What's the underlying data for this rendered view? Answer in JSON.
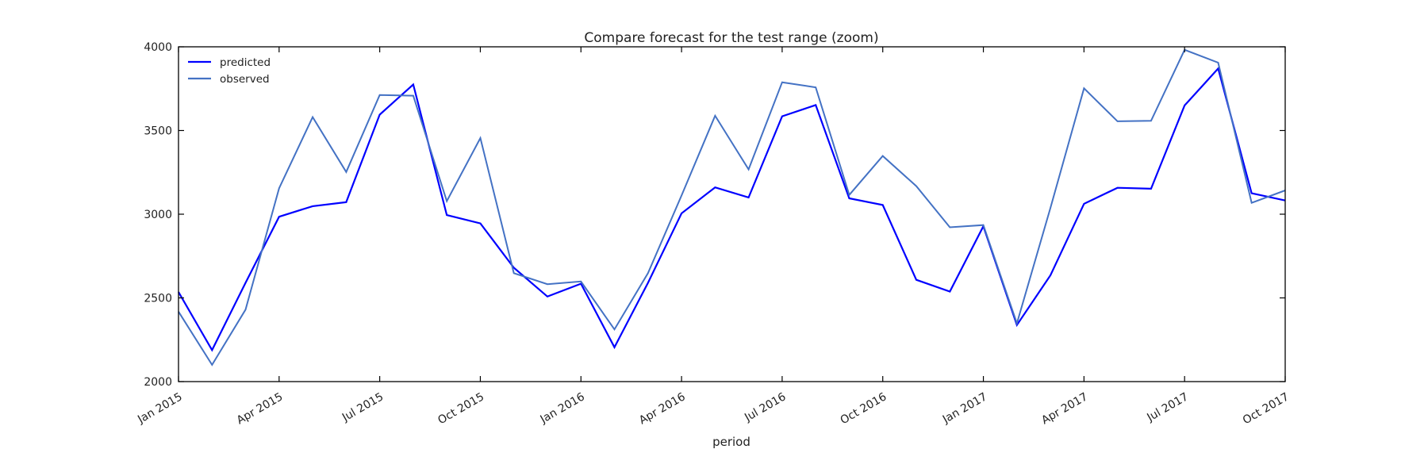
{
  "chart_data": {
    "type": "line",
    "title": "Compare forecast for the test range (zoom)",
    "xlabel": "period",
    "ylabel": "",
    "ylim": [
      2000,
      4000
    ],
    "y_ticks": [
      2000,
      2500,
      3000,
      3500,
      4000
    ],
    "x_tick_labels": [
      "Jan 2015",
      "Apr 2015",
      "Jul 2015",
      "Oct 2015",
      "Jan 2016",
      "Apr 2016",
      "Jul 2016",
      "Oct 2016",
      "Jan 2017",
      "Apr 2017",
      "Jul 2017",
      "Oct 2017"
    ],
    "x": [
      "2015-01",
      "2015-02",
      "2015-03",
      "2015-04",
      "2015-05",
      "2015-06",
      "2015-07",
      "2015-08",
      "2015-09",
      "2015-10",
      "2015-11",
      "2015-12",
      "2016-01",
      "2016-02",
      "2016-03",
      "2016-04",
      "2016-05",
      "2016-06",
      "2016-07",
      "2016-08",
      "2016-09",
      "2016-10",
      "2016-11",
      "2016-12",
      "2017-01",
      "2017-02",
      "2017-03",
      "2017-04",
      "2017-05",
      "2017-06",
      "2017-07",
      "2017-08",
      "2017-09",
      "2017-10"
    ],
    "legend_position": "top-left",
    "grid": false,
    "series": [
      {
        "name": "predicted",
        "color": "#0000ff",
        "values": [
          2535,
          2188,
          2590,
          2985,
          3048,
          3072,
          3595,
          3775,
          2995,
          2945,
          2680,
          2508,
          2585,
          2205,
          2590,
          3005,
          3160,
          3100,
          3585,
          3652,
          3095,
          3055,
          2608,
          2538,
          2928,
          2338,
          2635,
          3062,
          3158,
          3152,
          3650,
          3870,
          3125,
          3082
        ]
      },
      {
        "name": "observed",
        "color": "#4472c4",
        "values": [
          2418,
          2100,
          2430,
          3155,
          3580,
          3252,
          3712,
          3708,
          3078,
          3455,
          2648,
          2582,
          2598,
          2312,
          2648,
          3112,
          3588,
          3268,
          3788,
          3758,
          3115,
          3348,
          3168,
          2922,
          2935,
          2348,
          3038,
          3752,
          3555,
          3558,
          3982,
          3905,
          3068,
          3142
        ]
      }
    ]
  }
}
